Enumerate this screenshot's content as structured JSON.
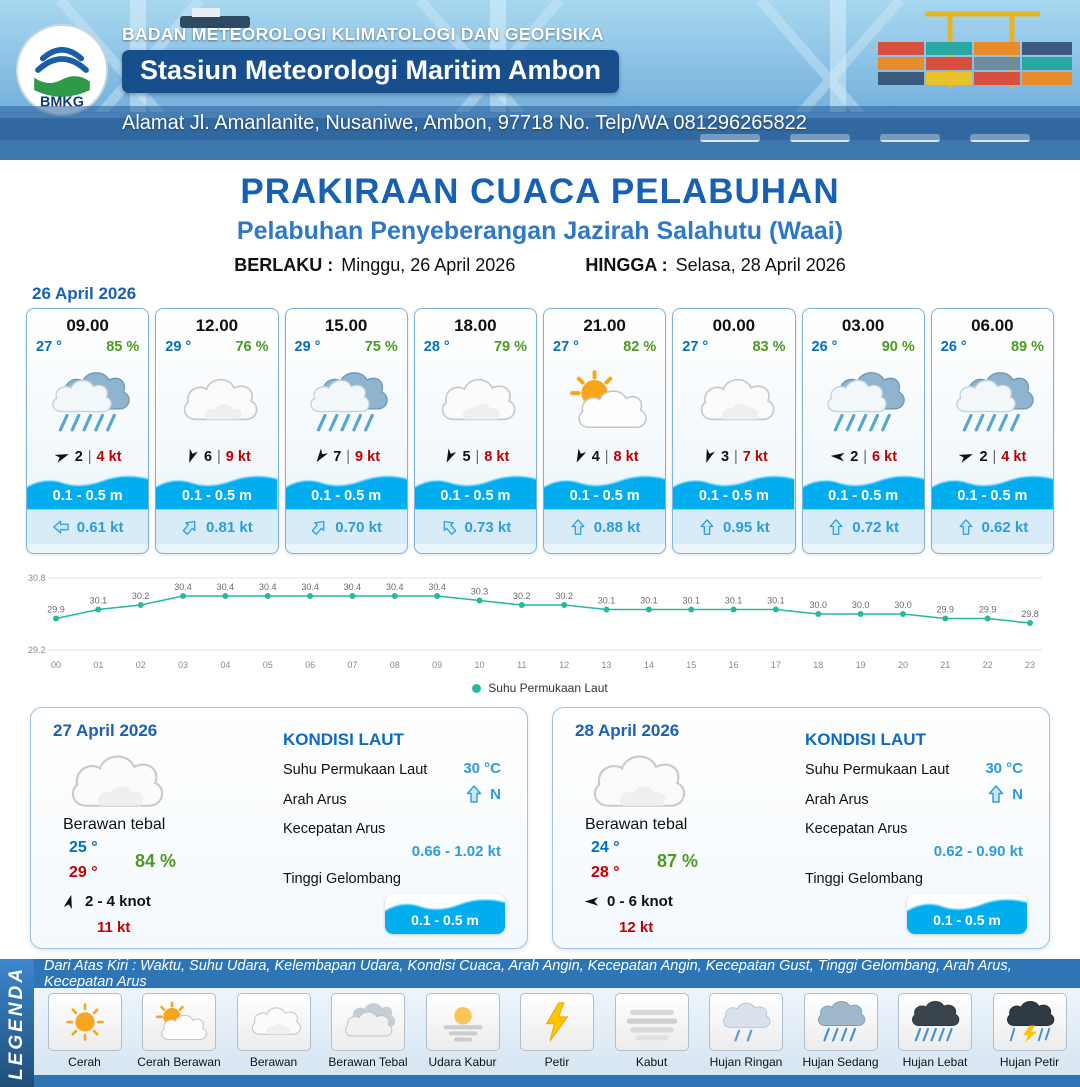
{
  "header": {
    "org": "BADAN METEOROLOGI KLIMATOLOGI DAN GEOFISIKA",
    "station": "Stasiun Meteorologi Maritim Ambon",
    "address": "Alamat Jl. Amanlanite, Nusaniwe, Ambon, 97718   No. Telp/WA  081296265822",
    "logo_label": "BMKG"
  },
  "title": {
    "main": "PRAKIRAAN CUACA PELABUHAN",
    "subtitle": "Pelabuhan Penyeberangan Jazirah Salahutu (Waai)",
    "berlaku_label": "BERLAKU :",
    "berlaku_value": "Minggu, 26 April 2026",
    "hingga_label": "HINGGA :",
    "hingga_value": "Selasa, 28 April 2026"
  },
  "forecast_date": "26 April 2026",
  "cards": [
    {
      "time": "09.00",
      "temp": "27 °",
      "rh": "85 %",
      "icon": "rain",
      "wind_dir": -20,
      "wind": "2",
      "gust": "4 kt",
      "wave": "0.1 - 0.5 m",
      "current_dir": -90,
      "current": "0.61 kt"
    },
    {
      "time": "12.00",
      "temp": "29 °",
      "rh": "76 %",
      "icon": "cloud",
      "wind_dir": 110,
      "wind": "6",
      "gust": "9 kt",
      "wave": "0.1 - 0.5 m",
      "current_dir": 40,
      "current": "0.81 kt"
    },
    {
      "time": "15.00",
      "temp": "29 °",
      "rh": "75 %",
      "icon": "rain",
      "wind_dir": 125,
      "wind": "7",
      "gust": "9 kt",
      "wave": "0.1 - 0.5 m",
      "current_dir": 40,
      "current": "0.70 kt"
    },
    {
      "time": "18.00",
      "temp": "28 °",
      "rh": "79 %",
      "icon": "cloud",
      "wind_dir": 115,
      "wind": "5",
      "gust": "8 kt",
      "wave": "0.1 - 0.5 m",
      "current_dir": -40,
      "current": "0.73 kt"
    },
    {
      "time": "21.00",
      "temp": "27 °",
      "rh": "82 %",
      "icon": "sun-cloud",
      "wind_dir": 115,
      "wind": "4",
      "gust": "8 kt",
      "wave": "0.1 - 0.5 m",
      "current_dir": 0,
      "current": "0.88 kt"
    },
    {
      "time": "00.00",
      "temp": "27 °",
      "rh": "83 %",
      "icon": "cloud",
      "wind_dir": 110,
      "wind": "3",
      "gust": "7 kt",
      "wave": "0.1 - 0.5 m",
      "current_dir": 0,
      "current": "0.95 kt"
    },
    {
      "time": "03.00",
      "temp": "26 °",
      "rh": "90 %",
      "icon": "rain",
      "wind_dir": 185,
      "wind": "2",
      "gust": "6 kt",
      "wave": "0.1 - 0.5 m",
      "current_dir": 0,
      "current": "0.72 kt"
    },
    {
      "time": "06.00",
      "temp": "26 °",
      "rh": "89 %",
      "icon": "rain",
      "wind_dir": -20,
      "wind": "2",
      "gust": "4 kt",
      "wave": "0.1 - 0.5 m",
      "current_dir": 0,
      "current": "0.62 kt"
    }
  ],
  "chart_data": {
    "type": "line",
    "x": [
      "00",
      "01",
      "02",
      "03",
      "04",
      "05",
      "06",
      "07",
      "08",
      "09",
      "10",
      "11",
      "12",
      "13",
      "14",
      "15",
      "16",
      "17",
      "18",
      "19",
      "20",
      "21",
      "22",
      "23"
    ],
    "series": [
      {
        "name": "Suhu Permukaan Laut",
        "values": [
          29.9,
          30.1,
          30.2,
          30.4,
          30.4,
          30.4,
          30.4,
          30.4,
          30.4,
          30.4,
          30.3,
          30.2,
          30.2,
          30.1,
          30.1,
          30.1,
          30.1,
          30.1,
          30.0,
          30.0,
          30.0,
          29.9,
          29.9,
          29.8
        ]
      }
    ],
    "ylim": [
      29.2,
      30.8
    ],
    "yticks": [
      "29.2",
      "30.8"
    ],
    "legend": "Suhu Permukaan Laut",
    "color": "#26B9A0",
    "grid": true,
    "legend_position": "bottom-center"
  },
  "daily": [
    {
      "date": "27 April 2026",
      "icon": "cloud",
      "condition": "Berawan tebal",
      "tmin": "25 °",
      "tmax": "29 °",
      "rh": "84 %",
      "wind_dir": -75,
      "wind_range": "2  - 4 knot",
      "gust": "11 kt",
      "sea_title": "KONDISI LAUT",
      "sst_label": "Suhu Permukaan Laut",
      "sst": "30 °C",
      "current_dir_label": "Arah Arus",
      "current_dir": "N",
      "current_speed_label": "Kecepatan Arus",
      "current_speed": "0.66 - 1.02 kt",
      "wave_label": "Tinggi Gelombang",
      "wave": "0.1 - 0.5 m"
    },
    {
      "date": "28 April 2026",
      "icon": "cloud",
      "condition": "Berawan tebal",
      "tmin": "24 °",
      "tmax": "28 °",
      "rh": "87 %",
      "wind_dir": 180,
      "wind_range": "0  - 6 knot",
      "gust": "12 kt",
      "sea_title": "KONDISI LAUT",
      "sst_label": "Suhu Permukaan Laut",
      "sst": "30 °C",
      "current_dir_label": "Arah Arus",
      "current_dir": "N",
      "current_speed_label": "Kecepatan Arus",
      "current_speed": "0.62 - 0.90 kt",
      "wave_label": "Tinggi Gelombang",
      "wave": "0.1 - 0.5 m"
    }
  ],
  "legend": {
    "vertical": "LEGENDA",
    "description": "Dari Atas Kiri : Waktu, Suhu Udara, Kelembapan Udara, Kondisi Cuaca, Arah Angin, Kecepatan Angin, Kecepatan Gust, Tinggi Gelombang, Arah Arus, Kecepatan Arus",
    "items": [
      {
        "label": "Cerah",
        "icon": "sun"
      },
      {
        "label": "Cerah Berawan",
        "icon": "sun-cloud"
      },
      {
        "label": "Berawan",
        "icon": "cloud"
      },
      {
        "label": "Berawan Tebal",
        "icon": "cloud-thick"
      },
      {
        "label": "Udara Kabur",
        "icon": "haze"
      },
      {
        "label": "Petir",
        "icon": "lightning"
      },
      {
        "label": "Kabut",
        "icon": "fog"
      },
      {
        "label": "Hujan Ringan",
        "icon": "rain-light"
      },
      {
        "label": "Hujan Sedang",
        "icon": "rain-moderate"
      },
      {
        "label": "Hujan Lebat",
        "icon": "rain-heavy"
      },
      {
        "label": "Hujan Petir",
        "icon": "rain-thunder"
      }
    ]
  }
}
